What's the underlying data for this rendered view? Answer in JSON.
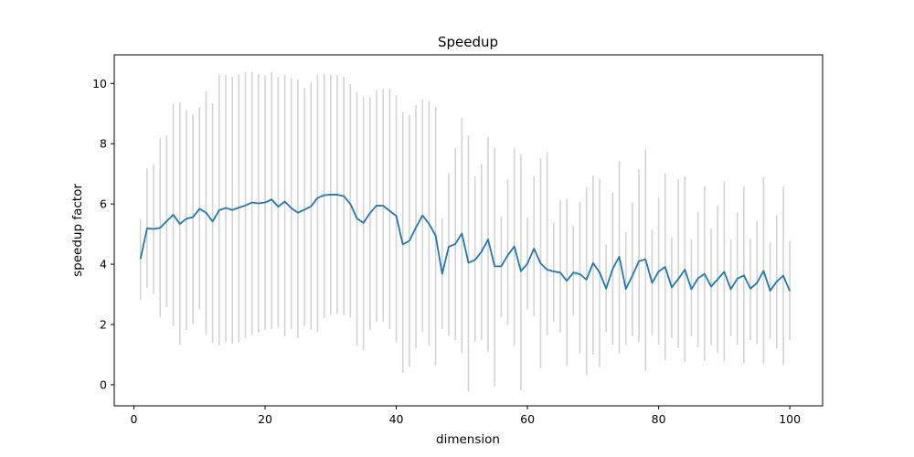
{
  "chart_data": {
    "type": "line",
    "title": "Speedup",
    "xlabel": "dimension",
    "ylabel": "speedup factor",
    "xlim": [
      -3,
      105
    ],
    "ylim": [
      -0.7,
      10.95
    ],
    "xticks": [
      0,
      20,
      40,
      60,
      80,
      100
    ],
    "yticks": [
      0,
      2,
      4,
      6,
      8,
      10
    ],
    "grid": false,
    "colors": {
      "line": "#1f77b4",
      "errorbar": "#d3d3d3"
    },
    "x": [
      1,
      2,
      3,
      4,
      5,
      6,
      7,
      8,
      9,
      10,
      11,
      12,
      13,
      14,
      15,
      16,
      17,
      18,
      19,
      20,
      21,
      22,
      23,
      24,
      25,
      26,
      27,
      28,
      29,
      30,
      31,
      32,
      33,
      34,
      35,
      36,
      37,
      38,
      39,
      40,
      41,
      42,
      43,
      44,
      45,
      46,
      47,
      48,
      49,
      50,
      51,
      52,
      53,
      54,
      55,
      56,
      57,
      58,
      59,
      60,
      61,
      62,
      63,
      64,
      65,
      66,
      67,
      68,
      69,
      70,
      71,
      72,
      73,
      74,
      75,
      76,
      77,
      78,
      79,
      80,
      81,
      82,
      83,
      84,
      85,
      86,
      87,
      88,
      89,
      90,
      91,
      92,
      93,
      94,
      95,
      96,
      97,
      98,
      99,
      100
    ],
    "series": [
      {
        "y": [
          4.17,
          5.19,
          5.17,
          5.21,
          5.43,
          5.64,
          5.34,
          5.51,
          5.56,
          5.84,
          5.71,
          5.42,
          5.79,
          5.87,
          5.8,
          5.88,
          5.95,
          6.05,
          6.02,
          6.05,
          6.15,
          5.91,
          6.08,
          5.86,
          5.71,
          5.81,
          5.92,
          6.2,
          6.29,
          6.31,
          6.31,
          6.26,
          6.0,
          5.52,
          5.37,
          5.7,
          5.95,
          5.94,
          5.77,
          5.6,
          4.66,
          4.78,
          5.22,
          5.62,
          5.34,
          4.95,
          3.68,
          4.58,
          4.67,
          5.02,
          4.05,
          4.14,
          4.42,
          4.82,
          3.93,
          3.93,
          4.3,
          4.59,
          3.77,
          4.02,
          4.52,
          4.03,
          3.82,
          3.76,
          3.72,
          3.45,
          3.72,
          3.67,
          3.49,
          4.04,
          3.73,
          3.19,
          3.85,
          4.25,
          3.18,
          3.62,
          4.1,
          4.16,
          3.38,
          3.76,
          3.91,
          3.23,
          3.51,
          3.82,
          3.17,
          3.53,
          3.68,
          3.26,
          3.5,
          3.75,
          3.17,
          3.52,
          3.63,
          3.19,
          3.38,
          3.78,
          3.12,
          3.42,
          3.62,
          3.11
        ],
        "err_low": [
          2.82,
          3.22,
          3.02,
          2.25,
          2.58,
          1.95,
          1.32,
          1.82,
          2.02,
          2.5,
          1.65,
          1.4,
          1.32,
          1.42,
          1.37,
          1.42,
          1.55,
          1.65,
          1.72,
          1.82,
          1.85,
          1.9,
          1.6,
          1.85,
          1.55,
          1.95,
          1.82,
          1.75,
          2.2,
          2.32,
          2.35,
          2.3,
          2.22,
          1.3,
          1.15,
          1.82,
          2.1,
          2.1,
          1.85,
          1.4,
          0.4,
          0.6,
          1.2,
          1.75,
          1.3,
          0.65,
          1.85,
          1.62,
          1.48,
          1.05,
          -0.22,
          1.42,
          1.48,
          1.1,
          -0.05,
          2.25,
          1.98,
          1.3,
          -0.18,
          2.5,
          2.28,
          0.55,
          1.65,
          2.1,
          1.72,
          0.62,
          2.3,
          1.05,
          0.32,
          1.0,
          0.6,
          1.75,
          1.32,
          1.05,
          1.32,
          1.62,
          1.42,
          0.48,
          1.65,
          1.32,
          0.82,
          1.55,
          1.22,
          0.75,
          1.6,
          1.25,
          0.8,
          1.32,
          1.05,
          0.78,
          1.6,
          1.32,
          0.72,
          1.48,
          1.35,
          0.68,
          1.52,
          1.2,
          0.65,
          1.48
        ],
        "err_high": [
          5.5,
          7.18,
          7.32,
          8.18,
          8.28,
          9.32,
          9.38,
          9.12,
          8.98,
          9.22,
          9.75,
          9.35,
          10.28,
          10.28,
          10.22,
          10.3,
          10.38,
          10.38,
          10.32,
          10.28,
          10.38,
          10.22,
          10.28,
          10.18,
          10.12,
          9.85,
          10.02,
          10.28,
          10.32,
          10.28,
          10.28,
          10.22,
          9.98,
          9.72,
          9.55,
          9.55,
          9.78,
          9.82,
          9.82,
          9.62,
          9.05,
          8.95,
          9.28,
          9.48,
          9.42,
          9.22,
          5.52,
          7.02,
          7.85,
          8.85,
          8.28,
          6.92,
          7.32,
          8.22,
          7.85,
          5.58,
          6.82,
          7.85,
          7.65,
          5.55,
          6.92,
          7.52,
          7.72,
          5.38,
          6.12,
          6.18,
          5.28,
          6.08,
          6.55,
          6.95,
          6.82,
          4.65,
          6.38,
          7.42,
          5.05,
          6.05,
          7.15,
          7.82,
          5.15,
          6.22,
          7.02,
          4.88,
          6.82,
          6.92,
          4.82,
          5.75,
          6.58,
          5.18,
          5.95,
          6.75,
          4.82,
          5.72,
          6.58,
          4.85,
          5.45,
          6.88,
          4.72,
          5.62,
          6.58,
          4.78
        ]
      }
    ]
  }
}
